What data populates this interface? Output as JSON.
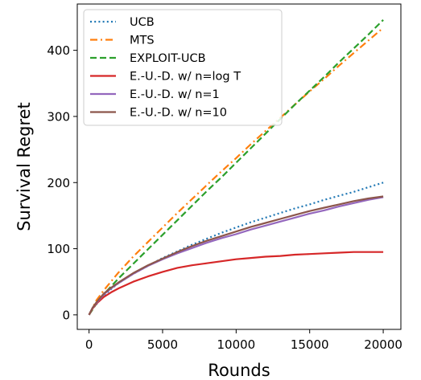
{
  "chart_data": {
    "type": "line",
    "xlabel": "Rounds",
    "ylabel": "Survival Regret",
    "xlim": [
      -800,
      21200
    ],
    "ylim": [
      -22,
      470
    ],
    "xticks": [
      0,
      5000,
      10000,
      15000,
      20000
    ],
    "yticks": [
      0,
      100,
      200,
      300,
      400
    ],
    "grid": false,
    "legend_position": "top-left",
    "series": [
      {
        "name": "UCB",
        "color": "#1f77b4",
        "style": "dotted",
        "x": [
          0,
          250,
          500,
          1000,
          1500,
          2000,
          3000,
          4000,
          5000,
          6000,
          7000,
          8000,
          9000,
          10000,
          11000,
          12000,
          13000,
          14000,
          15000,
          16000,
          17000,
          18000,
          19000,
          20000
        ],
        "y": [
          0,
          10,
          16,
          29,
          39,
          48,
          62,
          74,
          86,
          96,
          106,
          115,
          124,
          132,
          140,
          147,
          154,
          161,
          167,
          174,
          180,
          186,
          193,
          200
        ]
      },
      {
        "name": "MTS",
        "color": "#ff7f0e",
        "style": "dashdot",
        "x": [
          0,
          500,
          1000,
          2000,
          3000,
          4000,
          5000,
          6000,
          7000,
          8000,
          9000,
          10000,
          11000,
          12000,
          13000,
          14000,
          15000,
          16000,
          17000,
          18000,
          19000,
          20000
        ],
        "y": [
          0,
          22,
          37,
          64,
          88,
          110,
          132,
          154,
          175,
          196,
          217,
          237,
          258,
          278,
          298,
          318,
          338,
          357,
          377,
          396,
          415,
          434
        ]
      },
      {
        "name": "EXPLOIT-UCB",
        "color": "#2ca02c",
        "style": "dashed",
        "x": [
          0,
          500,
          1000,
          2000,
          3000,
          4000,
          5000,
          6000,
          7000,
          8000,
          9000,
          10000,
          11000,
          12000,
          13000,
          14000,
          15000,
          16000,
          17000,
          18000,
          19000,
          20000
        ],
        "y": [
          0,
          17,
          31,
          55,
          77,
          99,
          121,
          143,
          165,
          187,
          208,
          230,
          252,
          274,
          296,
          318,
          339,
          360,
          382,
          403,
          424,
          446
        ]
      },
      {
        "name": "E.-U.-D. w/ n=log T",
        "color": "#d62728",
        "style": "solid",
        "x": [
          0,
          250,
          500,
          1000,
          1500,
          2000,
          3000,
          4000,
          5000,
          6000,
          7000,
          8000,
          9000,
          10000,
          11000,
          12000,
          13000,
          14000,
          15000,
          16000,
          17000,
          18000,
          19000,
          20000
        ],
        "y": [
          0,
          10,
          17,
          27,
          34,
          40,
          50,
          58,
          65,
          71,
          75,
          78,
          81,
          84,
          86,
          88,
          89,
          91,
          92,
          93,
          94,
          95,
          95,
          95
        ]
      },
      {
        "name": "E.-U.-D. w/ n=1",
        "color": "#9467bd",
        "style": "solid",
        "x": [
          0,
          250,
          500,
          1000,
          1500,
          2000,
          3000,
          4000,
          5000,
          6000,
          7000,
          8000,
          9000,
          10000,
          11000,
          12000,
          13000,
          14000,
          15000,
          16000,
          17000,
          18000,
          19000,
          20000
        ],
        "y": [
          0,
          11,
          18,
          31,
          40,
          48,
          62,
          74,
          84,
          93,
          101,
          109,
          116,
          122,
          129,
          135,
          141,
          147,
          153,
          158,
          164,
          169,
          174,
          178
        ]
      },
      {
        "name": "E.-U.-D. w/ n=10",
        "color": "#8c564b",
        "style": "solid",
        "x": [
          0,
          250,
          500,
          1000,
          1500,
          2000,
          3000,
          4000,
          5000,
          6000,
          7000,
          8000,
          9000,
          10000,
          11000,
          12000,
          13000,
          14000,
          15000,
          16000,
          17000,
          18000,
          19000,
          20000
        ],
        "y": [
          0,
          11,
          19,
          32,
          41,
          49,
          63,
          75,
          85,
          95,
          104,
          112,
          119,
          126,
          133,
          139,
          145,
          151,
          157,
          162,
          167,
          172,
          176,
          179
        ]
      }
    ]
  }
}
